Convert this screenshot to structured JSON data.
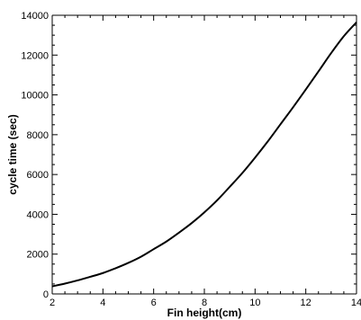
{
  "chart_data": {
    "type": "line",
    "title": "",
    "xlabel": "Fin height(cm)",
    "ylabel": "cycle time (sec)",
    "xlim": [
      2,
      14
    ],
    "ylim": [
      0,
      14000
    ],
    "xticks": [
      2,
      4,
      6,
      8,
      10,
      12,
      14
    ],
    "yticks": [
      0,
      2000,
      4000,
      6000,
      8000,
      10000,
      12000,
      14000
    ],
    "xtick_labels": [
      "2",
      "4",
      "6",
      "8",
      "10",
      "12",
      "14"
    ],
    "ytick_labels": [
      "0",
      "2000",
      "4000",
      "6000",
      "8000",
      "10000",
      "12000",
      "14000"
    ],
    "grid": false,
    "legend": "none",
    "line_color": "#000000",
    "series": [
      {
        "x": [
          2,
          2.5,
          3,
          3.5,
          4,
          4.5,
          5,
          5.5,
          6,
          6.5,
          7,
          7.5,
          8,
          8.5,
          9,
          9.5,
          10,
          10.5,
          11,
          11.5,
          12,
          12.5,
          13,
          13.5,
          14
        ],
        "values": [
          380,
          520,
          680,
          860,
          1050,
          1290,
          1560,
          1870,
          2250,
          2630,
          3080,
          3560,
          4100,
          4700,
          5380,
          6080,
          6850,
          7660,
          8520,
          9380,
          10270,
          11180,
          12100,
          12950,
          13650
        ]
      }
    ]
  }
}
